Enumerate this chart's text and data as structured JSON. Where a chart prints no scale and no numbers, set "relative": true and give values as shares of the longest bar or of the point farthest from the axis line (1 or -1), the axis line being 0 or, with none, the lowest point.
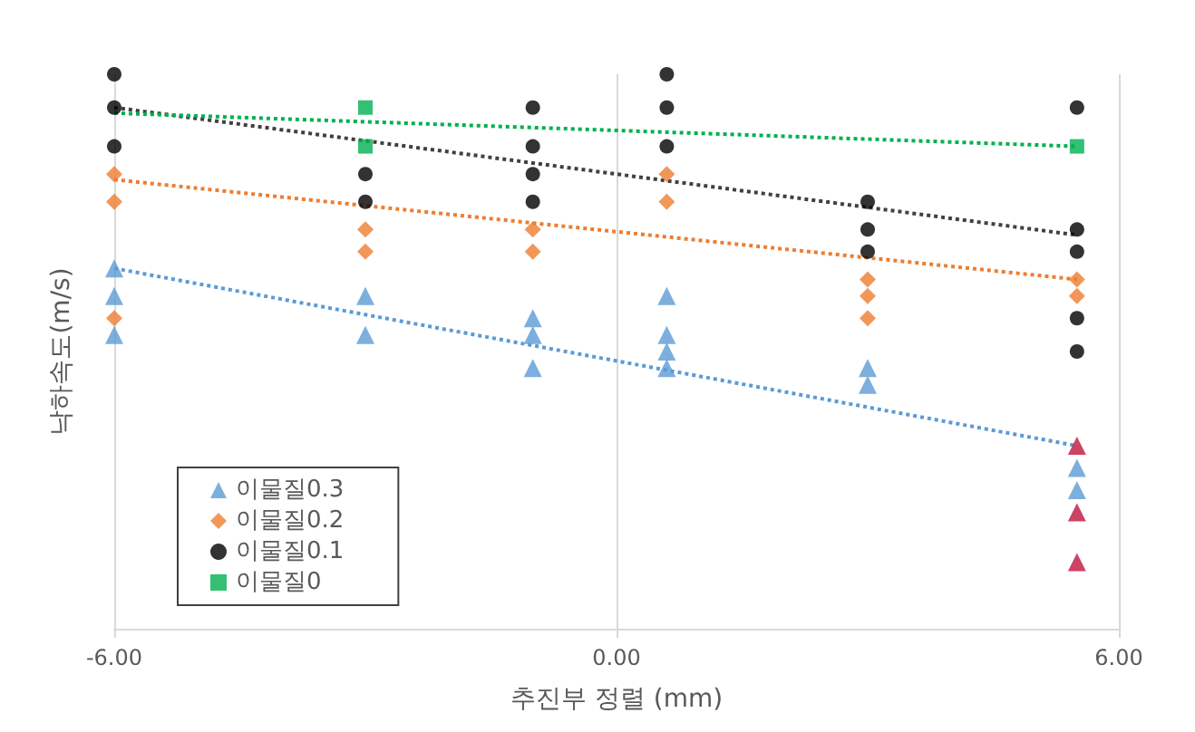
{
  "chart_data": {
    "type": "scatter",
    "xlabel": "추진부 정렬 (mm)",
    "ylabel": "낙하속도(m/s)",
    "relative": true,
    "xlim": [
      -6,
      6
    ],
    "xticks": [
      {
        "value": -6,
        "label": "-6.00"
      },
      {
        "value": 0,
        "label": "0.00"
      },
      {
        "value": 6,
        "label": "6.00"
      }
    ],
    "grid": "x",
    "legend": "bottom left",
    "series": [
      {
        "name": "이물질0.3",
        "color": "#5b9bd5",
        "marker": "triangle",
        "x": [
          -6,
          -6,
          -6,
          -3,
          -3,
          -1,
          -1,
          -1,
          0.6,
          0.6,
          0.6,
          0.6,
          3,
          3,
          5.5,
          5.5,
          5.5,
          5.5,
          5.5
        ],
        "values": [
          0.65,
          0.6,
          0.53,
          0.6,
          0.53,
          0.56,
          0.53,
          0.47,
          0.6,
          0.53,
          0.5,
          0.47,
          0.47,
          0.44,
          0.33,
          0.29,
          0.25,
          0.21,
          0.12
        ],
        "colors": [
          "#5b9bd5",
          "#5b9bd5",
          "#5b9bd5",
          "#5b9bd5",
          "#5b9bd5",
          "#5b9bd5",
          "#5b9bd5",
          "#5b9bd5",
          "#5b9bd5",
          "#5b9bd5",
          "#5b9bd5",
          "#5b9bd5",
          "#5b9bd5",
          "#5b9bd5",
          "#c0143c",
          "#5b9bd5",
          "#5b9bd5",
          "#c0143c",
          "#c0143c"
        ]
      },
      {
        "name": "이물질0.2",
        "color": "#ed7d31",
        "marker": "diamond",
        "x": [
          -6,
          -6,
          -6,
          -3,
          -3,
          -1,
          -1,
          0.6,
          0.6,
          3,
          3,
          3,
          5.5,
          5.5
        ],
        "values": [
          0.82,
          0.77,
          0.56,
          0.72,
          0.68,
          0.72,
          0.68,
          0.82,
          0.77,
          0.63,
          0.6,
          0.56,
          0.63,
          0.6
        ]
      },
      {
        "name": "이물질0.1",
        "color": "#000000",
        "marker": "circle",
        "x": [
          -6,
          -6,
          -6,
          -3,
          -3,
          -1,
          -1,
          -1,
          -1,
          0.6,
          0.6,
          0.6,
          3,
          3,
          3,
          5.5,
          5.5,
          5.5,
          5.5,
          5.5
        ],
        "values": [
          1.0,
          0.94,
          0.87,
          0.82,
          0.77,
          0.94,
          0.87,
          0.82,
          0.77,
          1.0,
          0.94,
          0.87,
          0.77,
          0.72,
          0.68,
          0.94,
          0.72,
          0.68,
          0.56,
          0.5
        ]
      },
      {
        "name": "이물질0",
        "color": "#00b050",
        "marker": "square",
        "x": [
          -3,
          -3,
          5.5
        ],
        "values": [
          0.94,
          0.87,
          0.87
        ]
      },
      {
        "type": "line",
        "color": "#5b9bd5",
        "marker": "none",
        "line_style": "dotted",
        "x": [
          -6,
          5.5
        ],
        "values": [
          0.65,
          0.33
        ]
      },
      {
        "type": "line",
        "color": "#ed7d31",
        "marker": "none",
        "line_style": "dotted",
        "x": [
          -6,
          5.5
        ],
        "values": [
          0.81,
          0.63
        ]
      },
      {
        "type": "line",
        "color": "#404040",
        "marker": "none",
        "line_style": "dotted",
        "x": [
          -6,
          5.5
        ],
        "values": [
          0.94,
          0.71
        ]
      },
      {
        "type": "line",
        "color": "#00b050",
        "marker": "none",
        "line_style": "dotted",
        "x": [
          -6,
          5.5
        ],
        "values": [
          0.93,
          0.87
        ]
      }
    ]
  }
}
